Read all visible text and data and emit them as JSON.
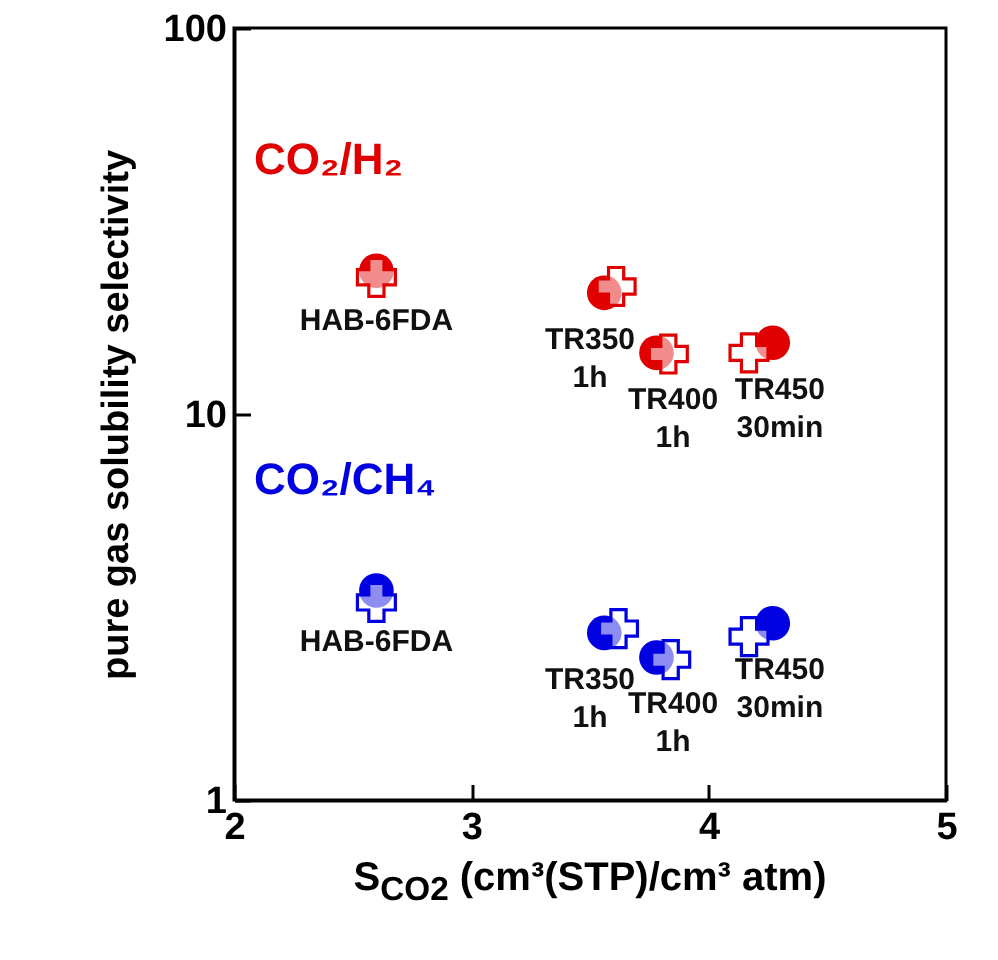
{
  "chart_data": {
    "type": "scatter",
    "xlabel": "S$_{CO2}$ (cm³(STP)/cm³ atm)",
    "ylabel": "pure gas solubility selectivity",
    "xlim": [
      2,
      5
    ],
    "xticks": [
      2,
      3,
      4,
      5
    ],
    "ylim": [
      1,
      100
    ],
    "yticks": [
      1,
      10,
      100
    ],
    "log": "y",
    "grid": false,
    "series": [
      {
        "name": "CO₂/H₂",
        "color": "#e00000",
        "marker": "circle",
        "x": [
          2.6,
          3.56,
          3.78,
          4.27
        ],
        "values": [
          23.5,
          20.6,
          14.4,
          15.3
        ]
      },
      {
        "color": "#e00000",
        "marker": "cross",
        "x": [
          2.6,
          3.61,
          3.83,
          4.17
        ],
        "values": [
          22.6,
          21.4,
          14.3,
          14.4
        ]
      },
      {
        "name": "CO₂/CH₄",
        "color": "#0000e0",
        "marker": "circle",
        "x": [
          2.6,
          3.56,
          3.78,
          4.27
        ],
        "values": [
          3.49,
          2.71,
          2.34,
          2.87
        ]
      },
      {
        "color": "#0000e0",
        "marker": "cross",
        "x": [
          2.6,
          3.62,
          3.84,
          4.17
        ],
        "values": [
          3.25,
          2.78,
          2.31,
          2.65
        ]
      }
    ],
    "annotations": [
      {
        "text": "HAB-6FDA",
        "x": 2.6,
        "y": 23
      },
      {
        "text": "TR350\n1h",
        "x": 3.5,
        "y": 20.6
      },
      {
        "text": "TR400\n1h",
        "x": 3.85,
        "y": 14.4
      },
      {
        "text": "TR450\n30min",
        "x": 4.3,
        "y": 15.3
      },
      {
        "text": "HAB-6FDA",
        "x": 2.6,
        "y": 3.4
      },
      {
        "text": "TR350\n1h",
        "x": 3.5,
        "y": 2.71
      },
      {
        "text": "TR400\n1h",
        "x": 3.85,
        "y": 2.34
      },
      {
        "text": "TR450\n30min",
        "x": 4.3,
        "y": 2.87
      }
    ]
  }
}
